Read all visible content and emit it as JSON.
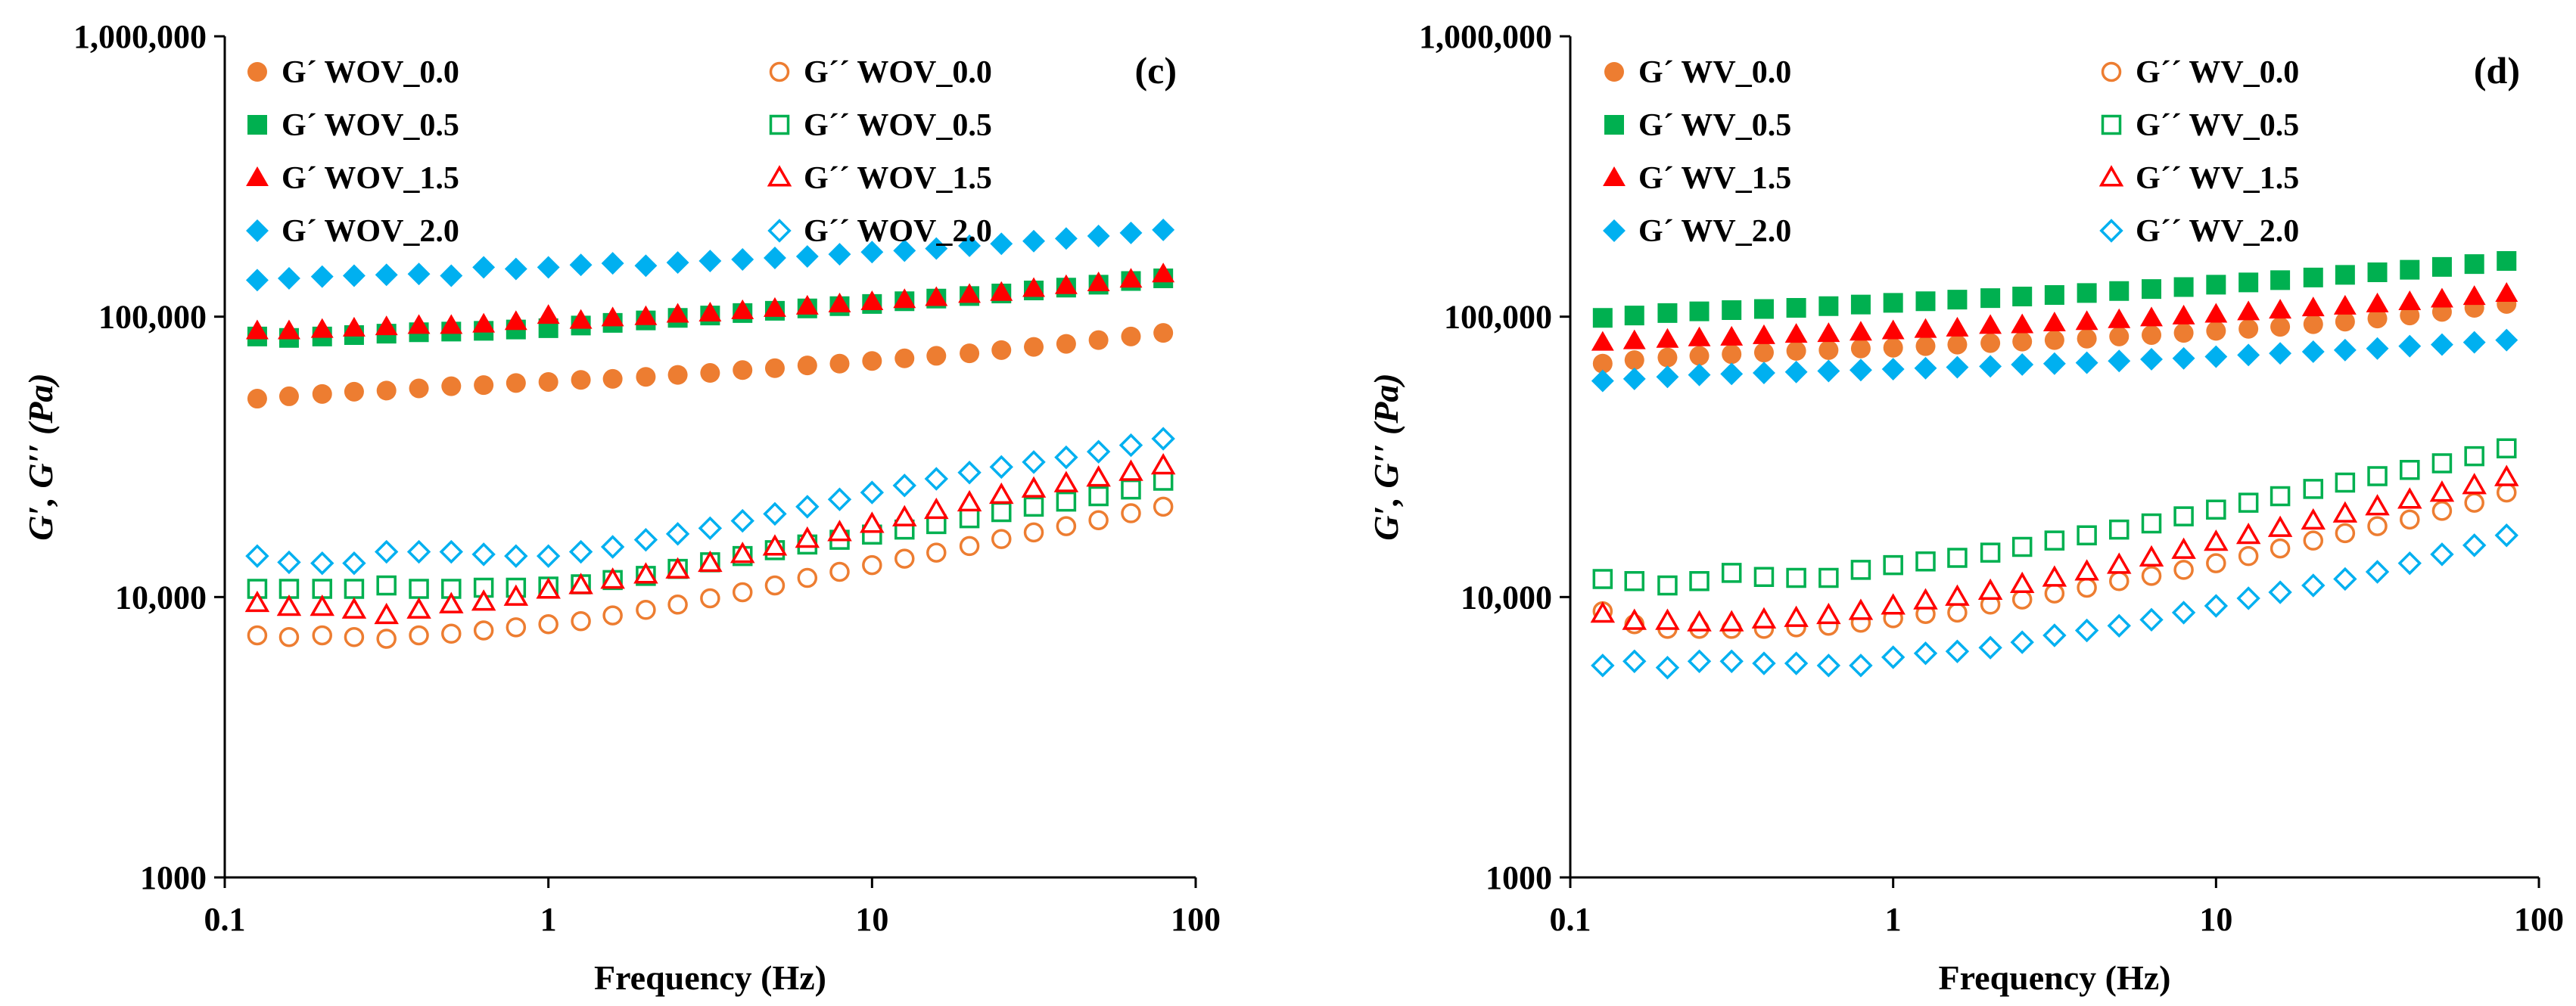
{
  "chart_data": [
    {
      "type": "scatter",
      "panel_label": "(c)",
      "title": "",
      "xlabel": "Frequency (Hz)",
      "ylabel": "G′, G′′ (Pa)",
      "xscale": "log",
      "yscale": "log",
      "xlim": [
        0.1,
        100
      ],
      "ylim": [
        1000,
        1000000
      ],
      "x_ticks": [
        "0.1",
        "1",
        "10",
        "100"
      ],
      "y_ticks": [
        "1000",
        "10,000",
        "100,000",
        "1,000,000"
      ],
      "legend_placement": "top-left",
      "x": [
        0.126,
        0.158,
        0.2,
        0.251,
        0.316,
        0.398,
        0.501,
        0.631,
        0.794,
        1.0,
        1.26,
        1.58,
        2.0,
        2.51,
        3.16,
        3.98,
        5.01,
        6.31,
        7.94,
        10.0,
        12.6,
        15.8,
        20.0,
        25.1,
        31.6,
        39.8,
        50.1,
        63.1,
        79.4
      ],
      "series": [
        {
          "name": "G´ WOV_0.0",
          "marker": "circle",
          "filled": true,
          "color": "#ED7D31",
          "values": [
            51000,
            52000,
            53000,
            54000,
            54500,
            55500,
            56500,
            57000,
            58000,
            58500,
            59500,
            60000,
            61000,
            62000,
            63000,
            64500,
            65500,
            67000,
            68000,
            69500,
            71000,
            72500,
            74000,
            76000,
            78000,
            80000,
            82500,
            85000,
            87500
          ]
        },
        {
          "name": "G´´ WOV_0.0",
          "marker": "circle",
          "filled": false,
          "color": "#ED7D31",
          "values": [
            7300,
            7200,
            7300,
            7200,
            7100,
            7300,
            7400,
            7600,
            7800,
            8000,
            8200,
            8600,
            9000,
            9400,
            9900,
            10400,
            11000,
            11700,
            12300,
            13000,
            13700,
            14400,
            15200,
            16100,
            17000,
            17900,
            18800,
            19900,
            21000
          ]
        },
        {
          "name": "G´ WOV_0.5",
          "marker": "square",
          "filled": true,
          "color": "#00B050",
          "values": [
            85000,
            84000,
            85000,
            86000,
            87000,
            88000,
            88500,
            89000,
            90000,
            91000,
            93000,
            95000,
            97000,
            99000,
            101000,
            103000,
            105000,
            107000,
            109000,
            111000,
            113500,
            116000,
            118500,
            121000,
            124000,
            127000,
            130000,
            134000,
            137000
          ]
        },
        {
          "name": "G´´ WOV_0.5",
          "marker": "square",
          "filled": false,
          "color": "#00B050",
          "values": [
            10700,
            10700,
            10700,
            10700,
            11000,
            10700,
            10700,
            10800,
            10800,
            10900,
            11100,
            11500,
            11900,
            12600,
            13300,
            14000,
            14700,
            15400,
            16000,
            16700,
            17400,
            18200,
            19100,
            20100,
            21000,
            21900,
            22900,
            24200,
            26000
          ]
        },
        {
          "name": "G´ WOV_1.5",
          "marker": "triangle",
          "filled": true,
          "color": "#FF0000",
          "values": [
            89000,
            89000,
            90000,
            91000,
            92000,
            93000,
            93000,
            94000,
            96000,
            101000,
            97000,
            99000,
            100000,
            102000,
            103000,
            105000,
            107000,
            109000,
            111000,
            113000,
            115000,
            117000,
            120000,
            122000,
            126000,
            129000,
            132000,
            136000,
            142000
          ]
        },
        {
          "name": "G´´ WOV_1.5",
          "marker": "triangle",
          "filled": false,
          "color": "#FF0000",
          "values": [
            9500,
            9200,
            9200,
            9000,
            8600,
            9000,
            9400,
            9600,
            10000,
            10600,
            11000,
            11500,
            12000,
            12500,
            13200,
            14200,
            15100,
            16100,
            17000,
            18200,
            19200,
            20400,
            21700,
            23100,
            24300,
            25400,
            26600,
            27900,
            29400
          ]
        },
        {
          "name": "G´ WOV_2.0",
          "marker": "diamond",
          "filled": true,
          "color": "#00B0F0",
          "values": [
            135000,
            137000,
            139000,
            140000,
            141000,
            142000,
            140000,
            150000,
            148000,
            150000,
            153000,
            155000,
            152000,
            156000,
            158000,
            160000,
            162000,
            164000,
            167000,
            170000,
            172000,
            175000,
            179000,
            182000,
            186000,
            190000,
            194000,
            199000,
            204000
          ]
        },
        {
          "name": "G´´ WOV_2.0",
          "marker": "diamond",
          "filled": false,
          "color": "#00B0F0",
          "values": [
            14000,
            13300,
            13200,
            13200,
            14500,
            14500,
            14500,
            14200,
            14000,
            14000,
            14500,
            15100,
            16000,
            16800,
            17600,
            18700,
            19800,
            21000,
            22300,
            23600,
            25000,
            26400,
            27800,
            29100,
            30300,
            31500,
            33000,
            34800,
            36700
          ]
        }
      ]
    },
    {
      "type": "scatter",
      "panel_label": "(d)",
      "title": "",
      "xlabel": "Frequency (Hz)",
      "ylabel": "G′, G′′ (Pa)",
      "xscale": "log",
      "yscale": "log",
      "xlim": [
        0.1,
        100
      ],
      "ylim": [
        1000,
        1000000
      ],
      "x_ticks": [
        "0.1",
        "1",
        "10",
        "100"
      ],
      "y_ticks": [
        "1000",
        "10,000",
        "100,000",
        "1,000,000"
      ],
      "legend_placement": "top-left",
      "x": [
        0.126,
        0.158,
        0.2,
        0.251,
        0.316,
        0.398,
        0.501,
        0.631,
        0.794,
        1.0,
        1.26,
        1.58,
        2.0,
        2.51,
        3.16,
        3.98,
        5.01,
        6.31,
        7.94,
        10.0,
        12.6,
        15.8,
        20.0,
        25.1,
        31.6,
        39.8,
        50.1,
        63.1,
        79.4
      ],
      "series": [
        {
          "name": "G´ WV_0.0",
          "marker": "circle",
          "filled": true,
          "color": "#ED7D31",
          "values": [
            68000,
            70000,
            71500,
            72500,
            73500,
            74500,
            75500,
            76000,
            77000,
            77500,
            78500,
            79500,
            80500,
            81500,
            82500,
            83500,
            85000,
            86000,
            87500,
            89000,
            90500,
            92000,
            94000,
            96000,
            98500,
            101000,
            104000,
            107500,
            111000
          ]
        },
        {
          "name": "G´´ WV_0.0",
          "marker": "circle",
          "filled": false,
          "color": "#ED7D31",
          "values": [
            8900,
            8000,
            7700,
            7700,
            7700,
            7700,
            7800,
            7900,
            8100,
            8400,
            8700,
            8800,
            9400,
            9800,
            10300,
            10800,
            11400,
            11900,
            12500,
            13200,
            14000,
            14900,
            15900,
            16900,
            17900,
            18900,
            20300,
            21700,
            23600
          ]
        },
        {
          "name": "G´ WV_0.5",
          "marker": "square",
          "filled": true,
          "color": "#00B050",
          "values": [
            99000,
            101000,
            103000,
            104500,
            105500,
            106500,
            107500,
            109000,
            110500,
            112000,
            113500,
            115000,
            116500,
            118000,
            119500,
            121500,
            123500,
            125500,
            127500,
            130000,
            132500,
            135000,
            138000,
            141000,
            144000,
            147000,
            150500,
            154000,
            158000
          ]
        },
        {
          "name": "G´´ WV_0.5",
          "marker": "square",
          "filled": false,
          "color": "#00B050",
          "values": [
            11600,
            11400,
            11000,
            11400,
            12200,
            11800,
            11700,
            11700,
            12500,
            13000,
            13400,
            13800,
            14400,
            15100,
            15900,
            16600,
            17400,
            18300,
            19400,
            20500,
            21700,
            22900,
            24300,
            25600,
            27000,
            28400,
            30000,
            31800,
            33900
          ]
        },
        {
          "name": "G´ WV_1.5",
          "marker": "triangle",
          "filled": true,
          "color": "#FF0000",
          "values": [
            81000,
            82000,
            83000,
            84000,
            84500,
            85500,
            86500,
            87000,
            88000,
            89000,
            90000,
            91000,
            93000,
            93500,
            95000,
            96000,
            97500,
            99000,
            100500,
            102000,
            104000,
            105500,
            107500,
            109000,
            111000,
            113000,
            115500,
            118000,
            121000
          ]
        },
        {
          "name": "G´´ WV_1.5",
          "marker": "triangle",
          "filled": false,
          "color": "#FF0000",
          "values": [
            8700,
            8200,
            8200,
            8100,
            8100,
            8300,
            8400,
            8600,
            8900,
            9300,
            9700,
            10000,
            10500,
            11100,
            11700,
            12300,
            13000,
            13800,
            14700,
            15700,
            16600,
            17600,
            18700,
            19800,
            21000,
            22200,
            23500,
            25000,
            26700
          ]
        },
        {
          "name": "G´ WV_2.0",
          "marker": "diamond",
          "filled": true,
          "color": "#00B0F0",
          "values": [
            59000,
            60000,
            61000,
            62000,
            62500,
            63000,
            63500,
            64000,
            64500,
            65000,
            65500,
            66000,
            66500,
            67500,
            68000,
            68500,
            69500,
            70500,
            71000,
            72000,
            73000,
            74000,
            75000,
            76000,
            77000,
            78500,
            79500,
            81000,
            82500
          ]
        },
        {
          "name": "G´´ WV_2.0",
          "marker": "diamond",
          "filled": false,
          "color": "#00B0F0",
          "values": [
            5700,
            5900,
            5600,
            5900,
            5900,
            5800,
            5800,
            5700,
            5700,
            6100,
            6300,
            6400,
            6600,
            6900,
            7300,
            7600,
            7900,
            8300,
            8800,
            9300,
            9900,
            10400,
            11000,
            11600,
            12300,
            13200,
            14200,
            15300,
            16600
          ]
        }
      ]
    }
  ]
}
